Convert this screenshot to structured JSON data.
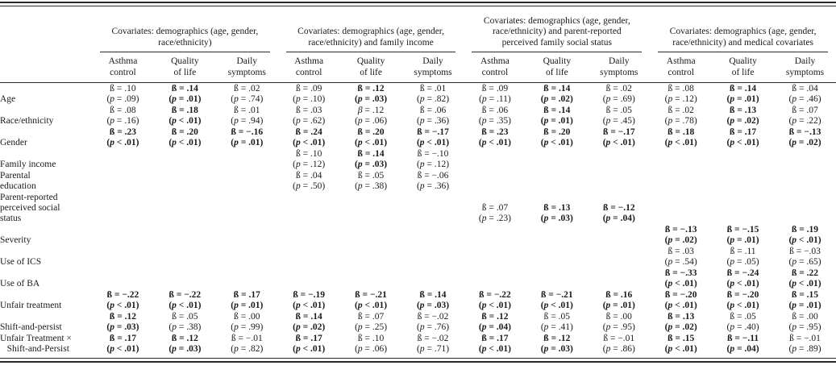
{
  "table": {
    "column_groups": [
      {
        "title": "Covariates: demographics (age, gender, race/ethnicity)"
      },
      {
        "title": "Covariates: demographics (age, gender, race/ethnicity) and family income"
      },
      {
        "title": "Covariates: demographics (age, gender, race/ethnicity) and parent-reported perceived family social status"
      },
      {
        "title": "Covariates: demographics (age, gender, race/ethnicity) and medical covariates"
      }
    ],
    "sub_columns": [
      {
        "l1": "Asthma",
        "l2": "control"
      },
      {
        "l1": "Quality",
        "l2": "of life"
      },
      {
        "l1": "Daily",
        "l2": "symptoms"
      }
    ],
    "beta_symbol": "ß",
    "rows": [
      {
        "label": [
          "Age"
        ],
        "cells": [
          {
            "b": ".10",
            "p": "= .09"
          },
          {
            "b": ".14",
            "p": "= .01",
            "bold": true
          },
          {
            "b": ".02",
            "p": "= .74"
          },
          {
            "b": ".09",
            "p": "= .10"
          },
          {
            "b": ".12",
            "p": "= .03",
            "bold": true
          },
          {
            "b": ".01",
            "p": "= .82"
          },
          {
            "b": ".09",
            "p": "= .11"
          },
          {
            "b": ".14",
            "p": "= .02",
            "bold": true
          },
          {
            "b": ".02",
            "p": "= .69"
          },
          {
            "b": ".08",
            "p": "= .12"
          },
          {
            "b": ".14",
            "p": "= .01",
            "bold": true
          },
          {
            "b": ".04",
            "p": "= .46"
          }
        ]
      },
      {
        "label": [
          "Race/ethnicity"
        ],
        "cells": [
          {
            "b": ".08",
            "p": "= .16"
          },
          {
            "b": ".18",
            "p": "< .01",
            "bold": true
          },
          {
            "b": ".01",
            "p": "= .94"
          },
          {
            "b": ".03",
            "p": "= .62"
          },
          {
            "b": ".12",
            "p": "= .06",
            "sym": "β"
          },
          {
            "b": ".06",
            "p": "= .36"
          },
          {
            "b": ".06",
            "p": "= .35"
          },
          {
            "b": ".14",
            "p": "= .01",
            "bold": true
          },
          {
            "b": ".05",
            "p": "= .45"
          },
          {
            "b": ".02",
            "p": "= .78"
          },
          {
            "b": ".13",
            "p": "= .02",
            "bold": true
          },
          {
            "b": ".07",
            "p": "= .22"
          }
        ]
      },
      {
        "label": [
          "Gender"
        ],
        "cells": [
          {
            "b": ".23",
            "p": "< .01",
            "bold": true
          },
          {
            "b": ".20",
            "p": "< .01",
            "bold": true
          },
          {
            "b": "−.16",
            "p": "= .01",
            "bold": true
          },
          {
            "b": ".24",
            "p": "< .01",
            "bold": true
          },
          {
            "b": ".20",
            "p": "< .01",
            "bold": true
          },
          {
            "b": "−.17",
            "p": "< .01",
            "bold": true
          },
          {
            "b": ".23",
            "p": "< .01",
            "bold": true
          },
          {
            "b": ".20",
            "p": "< .01",
            "bold": true
          },
          {
            "b": "−.17",
            "p": "< .01",
            "bold": true
          },
          {
            "b": ".18",
            "p": "< .01",
            "bold": true
          },
          {
            "b": ".17",
            "p": "< .01",
            "bold": true
          },
          {
            "b": "−.13",
            "p": "= .02",
            "bold": true
          }
        ]
      },
      {
        "label": [
          "Family income"
        ],
        "cells": [
          null,
          null,
          null,
          {
            "b": ".10",
            "p": "= .12"
          },
          {
            "b": ".14",
            "p": "= .03",
            "bold": true
          },
          {
            "b": "−.10",
            "p": "= .12"
          },
          null,
          null,
          null,
          null,
          null,
          null
        ]
      },
      {
        "label": [
          "Parental",
          "education"
        ],
        "cells": [
          null,
          null,
          null,
          {
            "b": ".04",
            "p": "= .50"
          },
          {
            "b": ".05",
            "p": "= .38"
          },
          {
            "b": "−.06",
            "p": "= .36"
          },
          null,
          null,
          null,
          null,
          null,
          null
        ]
      },
      {
        "label": [
          "Parent-reported",
          "perceived social",
          "status"
        ],
        "cells": [
          null,
          null,
          null,
          null,
          null,
          null,
          {
            "b": ".07",
            "p": "= .23"
          },
          {
            "b": ".13",
            "p": "= .03",
            "bold": true
          },
          {
            "b": "−.12",
            "p": "= .04",
            "bold": true
          },
          null,
          null,
          null
        ]
      },
      {
        "label": [
          "Severity"
        ],
        "cells": [
          null,
          null,
          null,
          null,
          null,
          null,
          null,
          null,
          null,
          {
            "b": "−.13",
            "p": "= .02",
            "bold": true
          },
          {
            "b": "−.15",
            "p": "= .01",
            "bold": true
          },
          {
            "b": ".19",
            "p": "< .01",
            "bold": true
          }
        ]
      },
      {
        "label": [
          "Use of ICS"
        ],
        "cells": [
          null,
          null,
          null,
          null,
          null,
          null,
          null,
          null,
          null,
          {
            "b": ".03",
            "p": "= .54"
          },
          {
            "b": ".11",
            "p": "= .05"
          },
          {
            "b": "−.03",
            "p": "= .65"
          }
        ]
      },
      {
        "label": [
          "Use of BA"
        ],
        "cells": [
          null,
          null,
          null,
          null,
          null,
          null,
          null,
          null,
          null,
          {
            "b": "−.33",
            "p": "< .01",
            "bold": true
          },
          {
            "b": "−.24",
            "p": "< .01",
            "bold": true
          },
          {
            "b": ".22",
            "p": "< .01",
            "bold": true
          }
        ]
      },
      {
        "label": [
          "Unfair treatment"
        ],
        "cells": [
          {
            "b": "−.22",
            "p": "< .01",
            "bold": true
          },
          {
            "b": "−.22",
            "p": "< .01",
            "bold": true
          },
          {
            "b": ".17",
            "p": "= .01",
            "bold": true
          },
          {
            "b": "−.19",
            "p": "< .01",
            "bold": true
          },
          {
            "b": "−.21",
            "p": "< .01",
            "bold": true
          },
          {
            "b": ".14",
            "p": "= .03",
            "bold": true
          },
          {
            "b": "−.22",
            "p": "< .01",
            "bold": true
          },
          {
            "b": "−.21",
            "p": "< .01",
            "bold": true
          },
          {
            "b": ".16",
            "p": "= .01",
            "bold": true
          },
          {
            "b": "−.20",
            "p": "< .01",
            "bold": true
          },
          {
            "b": "−.20",
            "p": "< .01",
            "bold": true
          },
          {
            "b": ".15",
            "p": "= .01",
            "bold": true
          }
        ]
      },
      {
        "label": [
          "Shift-and-persist"
        ],
        "cells": [
          {
            "b": ".12",
            "p": "= .03",
            "bold": true
          },
          {
            "b": ".05",
            "p": "= .38"
          },
          {
            "b": ".00",
            "p": "= .99"
          },
          {
            "b": ".14",
            "p": "= .02",
            "bold": true
          },
          {
            "b": ".07",
            "p": "= .25"
          },
          {
            "b": "−.02",
            "p": "= .76"
          },
          {
            "b": ".12",
            "p": "= .04",
            "bold": true
          },
          {
            "b": ".05",
            "p": "= .41"
          },
          {
            "b": ".00",
            "p": "= .95"
          },
          {
            "b": ".13",
            "p": "= .02",
            "bold": true
          },
          {
            "b": ".05",
            "p": "= .40"
          },
          {
            "b": ".00",
            "p": "= .95"
          }
        ]
      },
      {
        "label": [
          "Unfair Treatment ×",
          "   Shift-and-Persist"
        ],
        "cells": [
          {
            "b": ".17",
            "p": "< .01",
            "bold": true
          },
          {
            "b": ".12",
            "p": "= .03",
            "bold": true
          },
          {
            "b": "−.01",
            "p": "= .82"
          },
          {
            "b": ".17",
            "p": "< .01",
            "bold": true
          },
          {
            "b": ".10",
            "p": "= .06"
          },
          {
            "b": "−.02",
            "p": "= .71"
          },
          {
            "b": ".17",
            "p": "< .01",
            "bold": true
          },
          {
            "b": ".12",
            "p": "= .03",
            "bold": true
          },
          {
            "b": "−.01",
            "p": "= .86"
          },
          {
            "b": ".15",
            "p": "< .01",
            "bold": true
          },
          {
            "b": "−.11",
            "p": "= .04",
            "bold": true
          },
          {
            "b": "−.01",
            "p": "= .89"
          }
        ]
      }
    ]
  }
}
